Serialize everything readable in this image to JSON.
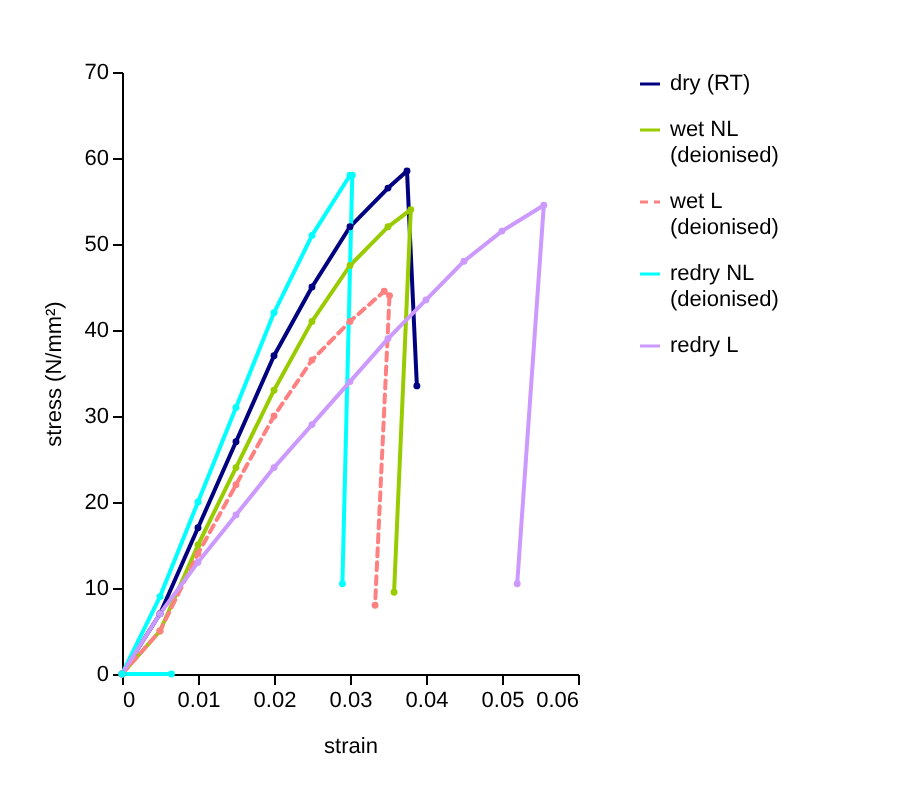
{
  "chart_data": {
    "type": "line",
    "xlabel": "strain",
    "ylabel": "stress (N/mm²)",
    "xlim": [
      0,
      0.06
    ],
    "ylim": [
      0,
      70
    ],
    "xticks": [
      0,
      0.01,
      0.02,
      0.03,
      0.04,
      0.05,
      0.06
    ],
    "yticks": [
      0,
      10,
      20,
      30,
      40,
      50,
      60,
      70
    ],
    "legend": "right",
    "marker": "circle",
    "grid": false,
    "series": [
      {
        "name": "dry (RT)",
        "color": "#000080",
        "line_style": "solid",
        "x": [
          0,
          0.005,
          0.01,
          0.015,
          0.02,
          0.025,
          0.03,
          0.035,
          0.0375,
          0.0388
        ],
        "values": [
          0,
          7,
          17,
          27,
          37,
          45,
          52,
          56.5,
          58.5,
          33.5
        ]
      },
      {
        "name": "wet NL (deionised)",
        "color": "#99cc00",
        "line_style": "solid",
        "x": [
          0,
          0.005,
          0.01,
          0.015,
          0.02,
          0.025,
          0.03,
          0.035,
          0.038,
          0.0358
        ],
        "values": [
          0,
          5,
          15,
          24,
          33,
          41,
          47.5,
          52,
          54,
          9.5
        ]
      },
      {
        "name": "wet L (deionised)",
        "color": "#ff8080",
        "line_style": "dashed",
        "x": [
          0,
          0.005,
          0.01,
          0.015,
          0.02,
          0.025,
          0.03,
          0.0345,
          0.0352,
          0.0333
        ],
        "values": [
          0,
          5,
          14,
          22,
          30,
          36.5,
          41,
          44.5,
          44,
          8
        ]
      },
      {
        "name": "redry NL (deionised)",
        "color": "#00ffff",
        "line_style": "solid",
        "x": [
          0.0065,
          0,
          0.005,
          0.01,
          0.015,
          0.02,
          0.025,
          0.03,
          0.0303,
          0.029
        ],
        "values": [
          0,
          0,
          9,
          20,
          31,
          42,
          51,
          58,
          58,
          10.5
        ]
      },
      {
        "name": "redry L",
        "color": "#cc99ff",
        "line_style": "solid",
        "x": [
          0,
          0.005,
          0.01,
          0.015,
          0.02,
          0.025,
          0.03,
          0.035,
          0.04,
          0.045,
          0.05,
          0.0555,
          0.052
        ],
        "values": [
          0,
          7,
          13,
          18.5,
          24,
          29,
          34,
          39,
          43.5,
          48,
          51.5,
          54.5,
          10.5
        ]
      }
    ]
  }
}
